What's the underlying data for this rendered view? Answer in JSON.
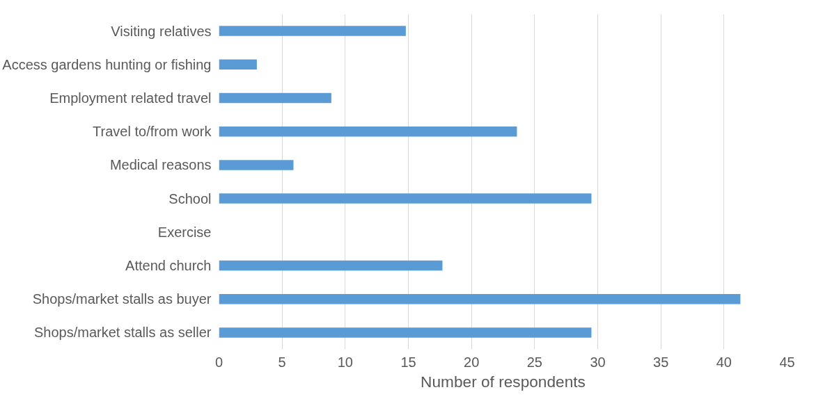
{
  "chart_data": {
    "type": "bar",
    "orientation": "horizontal",
    "xlabel": "Number of respondents",
    "categories": [
      "Visiting relatives",
      "Access gardens hunting or fishing",
      "Employment related travel",
      "Travel to/from work",
      "Medical reasons",
      "School",
      "Exercise",
      "Attend church",
      "Shops/market stalls as buyer",
      "Shops/market stalls as seller"
    ],
    "values": [
      14.8,
      3,
      8.9,
      23.6,
      5.9,
      29.5,
      0,
      17.7,
      41.3,
      29.5
    ],
    "color": "#5b9bd5",
    "xlim": [
      0,
      45
    ],
    "xticks": [
      0,
      5,
      10,
      15,
      20,
      25,
      30,
      35,
      40,
      45
    ],
    "grid": "x"
  }
}
